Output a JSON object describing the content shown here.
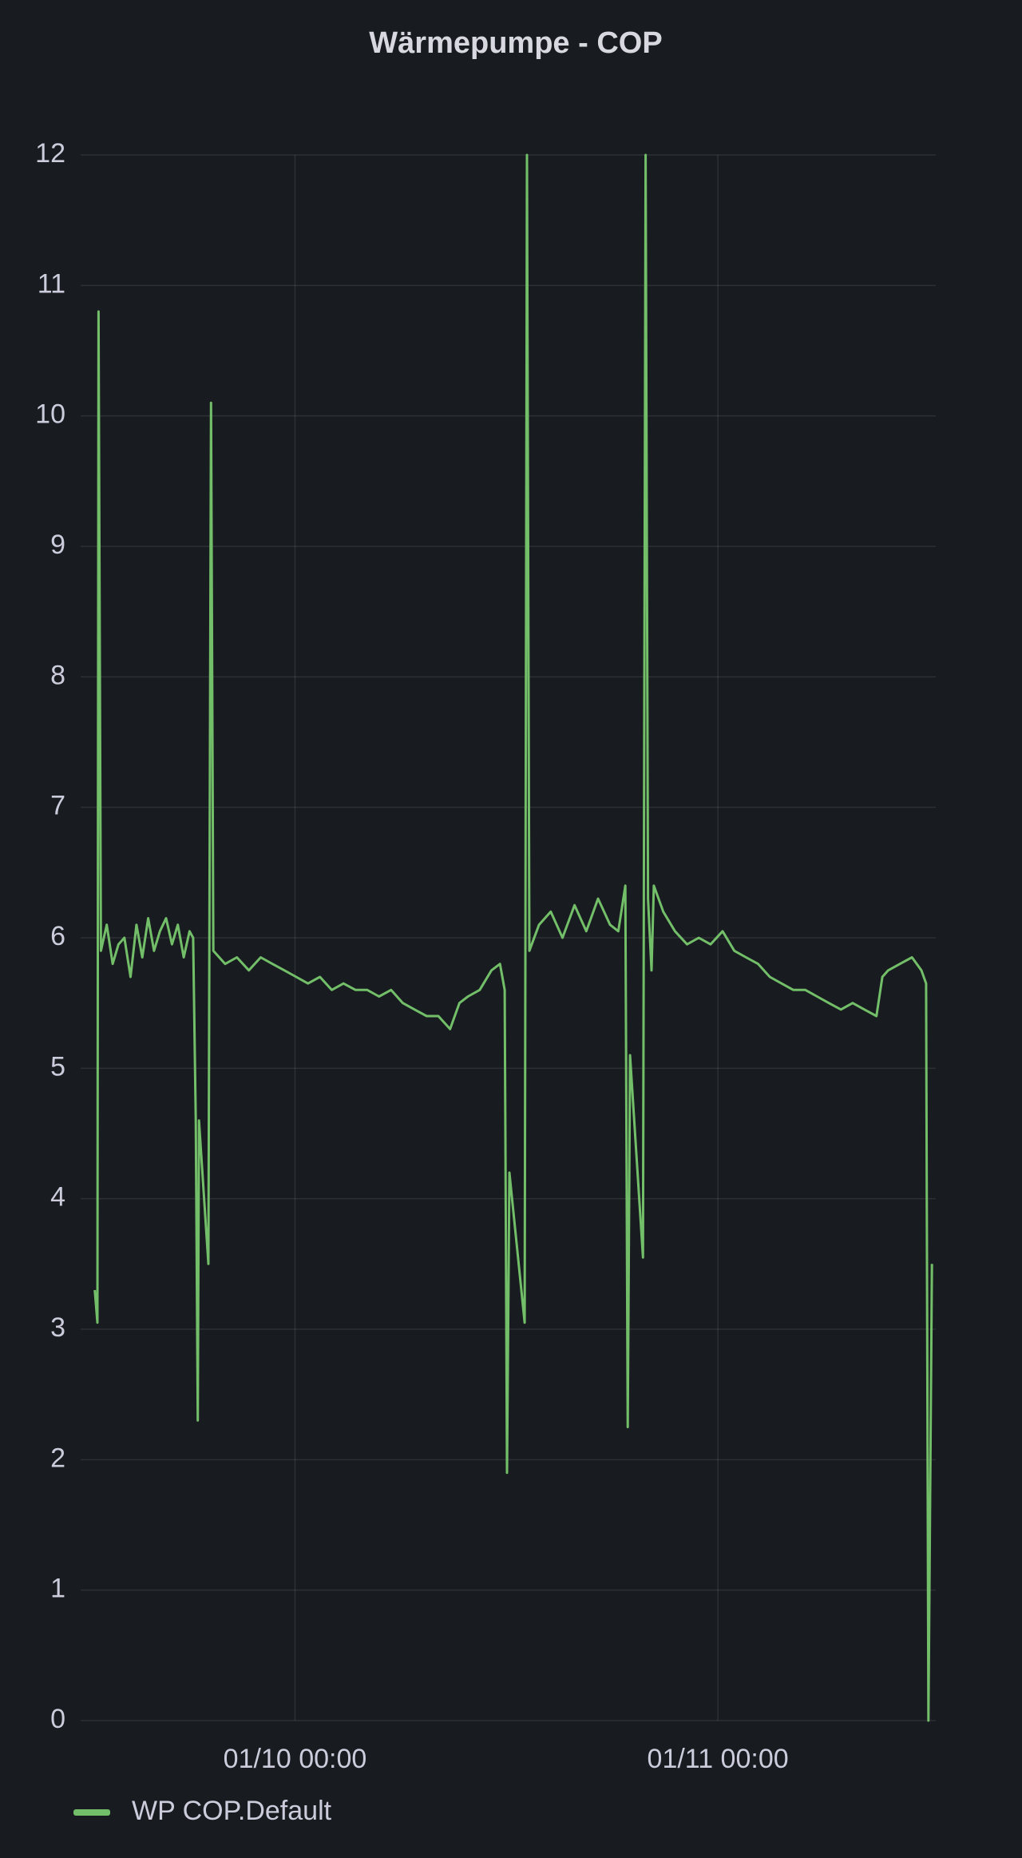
{
  "chart_data": {
    "type": "line",
    "title": "Wärmepumpe - COP",
    "x": [
      "01/09 12:38",
      "01/09 12:47",
      "01/09 12:51",
      "01/09 12:59",
      "01/09 13:19",
      "01/09 13:39",
      "01/09 13:59",
      "01/09 14:19",
      "01/09 14:40",
      "01/09 15:00",
      "01/09 15:20",
      "01/09 15:40",
      "01/09 16:00",
      "01/09 16:20",
      "01/09 16:41",
      "01/09 17:01",
      "01/09 17:21",
      "01/09 17:41",
      "01/09 18:01",
      "01/09 18:13",
      "01/09 18:22",
      "01/09 18:29",
      "01/09 18:33",
      "01/09 19:05",
      "01/09 19:14",
      "01/09 19:22",
      "01/09 20:02",
      "01/09 20:42",
      "01/09 21:23",
      "01/09 22:03",
      "01/09 22:43",
      "01/09 23:24",
      "01/10 00:04",
      "01/10 00:44",
      "01/10 01:25",
      "01/10 02:05",
      "01/10 02:45",
      "01/10 03:26",
      "01/10 04:06",
      "01/10 04:46",
      "01/10 05:27",
      "01/10 06:07",
      "01/10 06:47",
      "01/10 07:28",
      "01/10 08:08",
      "01/10 08:48",
      "01/10 09:20",
      "01/10 09:49",
      "01/10 10:29",
      "01/10 11:09",
      "01/10 11:38",
      "01/10 11:54",
      "01/10 12:02",
      "01/10 12:10",
      "01/10 13:02",
      "01/10 13:10",
      "01/10 13:18",
      "01/10 13:51",
      "01/10 14:31",
      "01/10 15:11",
      "01/10 15:52",
      "01/10 16:32",
      "01/10 17:12",
      "01/10 17:53",
      "01/10 18:21",
      "01/10 18:45",
      "01/10 18:53",
      "01/10 19:01",
      "01/10 19:45",
      "01/10 19:54",
      "01/10 20:02",
      "01/10 20:14",
      "01/10 20:22",
      "01/10 20:54",
      "01/10 21:34",
      "01/10 22:15",
      "01/10 22:55",
      "01/10 23:35",
      "01/11 00:16",
      "01/11 00:56",
      "01/11 01:36",
      "01/11 02:17",
      "01/11 02:57",
      "01/11 03:37",
      "01/11 04:17",
      "01/11 04:58",
      "01/11 05:38",
      "01/11 06:18",
      "01/11 06:59",
      "01/11 07:39",
      "01/11 08:19",
      "01/11 09:00",
      "01/11 09:20",
      "01/11 09:40",
      "01/11 10:20",
      "01/11 11:01",
      "01/11 11:33",
      "01/11 11:49",
      "01/11 11:57",
      "01/11 12:09"
    ],
    "series": [
      {
        "name": "WP COP.Default",
        "color": "#73bf69",
        "values": [
          3.3,
          3.05,
          10.8,
          5.9,
          6.1,
          5.8,
          5.95,
          6.0,
          5.7,
          6.1,
          5.85,
          6.15,
          5.9,
          6.05,
          6.15,
          5.95,
          6.1,
          5.85,
          6.05,
          6.0,
          4.6,
          2.3,
          4.6,
          3.5,
          10.1,
          5.9,
          5.8,
          5.85,
          5.75,
          5.85,
          5.8,
          5.75,
          5.7,
          5.65,
          5.7,
          5.6,
          5.65,
          5.6,
          5.6,
          5.55,
          5.6,
          5.5,
          5.45,
          5.4,
          5.4,
          5.3,
          5.5,
          5.55,
          5.6,
          5.75,
          5.8,
          5.6,
          1.9,
          4.2,
          3.05,
          12,
          5.9,
          6.1,
          6.2,
          6.0,
          6.25,
          6.05,
          6.3,
          6.1,
          6.05,
          6.4,
          2.25,
          5.1,
          3.55,
          12,
          6.3,
          5.75,
          6.4,
          6.2,
          6.05,
          5.95,
          6.0,
          5.95,
          6.05,
          5.9,
          5.85,
          5.8,
          5.7,
          5.65,
          5.6,
          5.6,
          5.55,
          5.5,
          5.45,
          5.5,
          5.45,
          5.4,
          5.7,
          5.75,
          5.8,
          5.85,
          5.75,
          5.65,
          0,
          3.5
        ]
      }
    ],
    "xlim": [
      "01/09 11:50",
      "01/11 12:22"
    ],
    "xticks": [
      "01/10 00:00",
      "01/11 00:00"
    ],
    "ylim": [
      0,
      12
    ],
    "yticks": [
      0,
      1,
      2,
      3,
      4,
      5,
      6,
      7,
      8,
      9,
      10,
      11,
      12
    ],
    "grid": true
  }
}
